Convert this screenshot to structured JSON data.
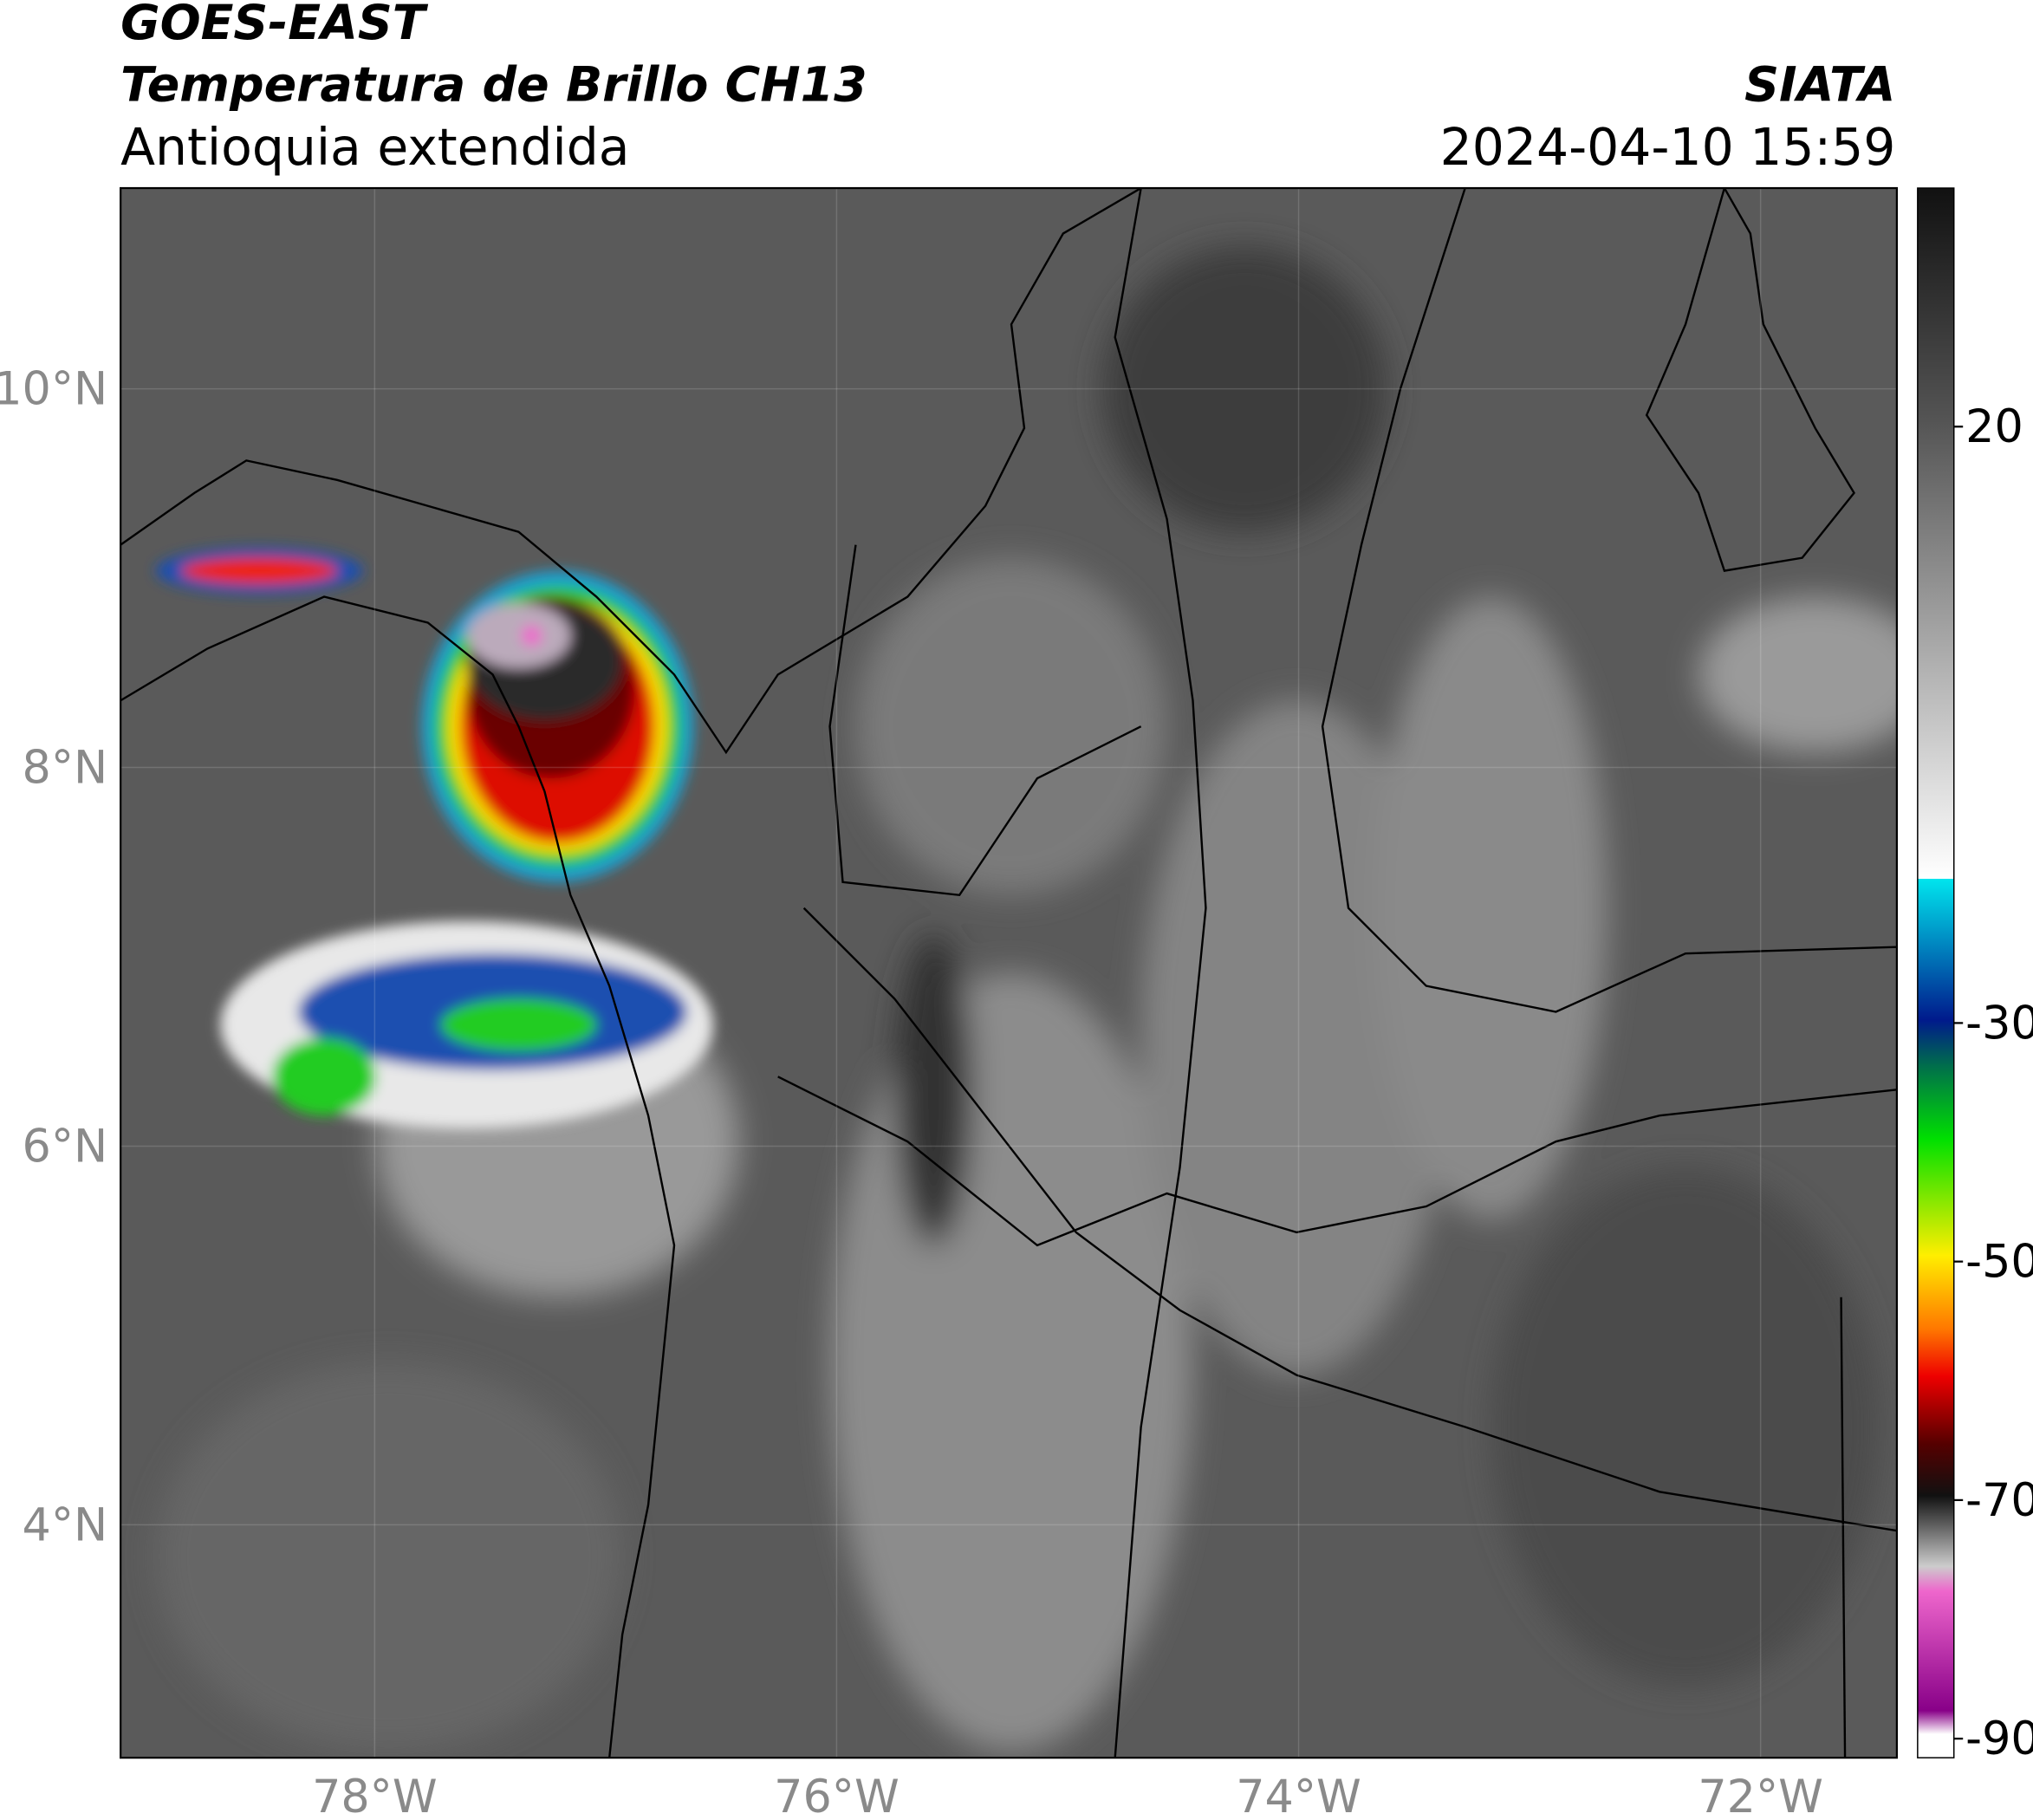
{
  "header": {
    "title": "GOES-EAST",
    "subtitle": "Temperatura de Brillo CH13",
    "region": "Antioquia extendida",
    "source": "SIATA",
    "timestamp": "2024-04-10 15:59"
  },
  "map": {
    "xlim": [
      -79.1,
      -71.41
    ],
    "ylim": [
      2.77,
      11.06
    ],
    "xticks": [
      {
        "value": -78,
        "label": "78°W"
      },
      {
        "value": -76,
        "label": "76°W"
      },
      {
        "value": -74,
        "label": "74°W"
      },
      {
        "value": -72,
        "label": "72°W"
      }
    ],
    "yticks": [
      {
        "value": 4,
        "label": "4°N"
      },
      {
        "value": 6,
        "label": "6°N"
      },
      {
        "value": 8,
        "label": "8°N"
      },
      {
        "value": 10,
        "label": "10°N"
      }
    ],
    "grid": true
  },
  "colorbar": {
    "lim": [
      -91.6,
      40
    ],
    "ticks": [
      -90,
      -70,
      -50,
      -30,
      20
    ]
  }
}
